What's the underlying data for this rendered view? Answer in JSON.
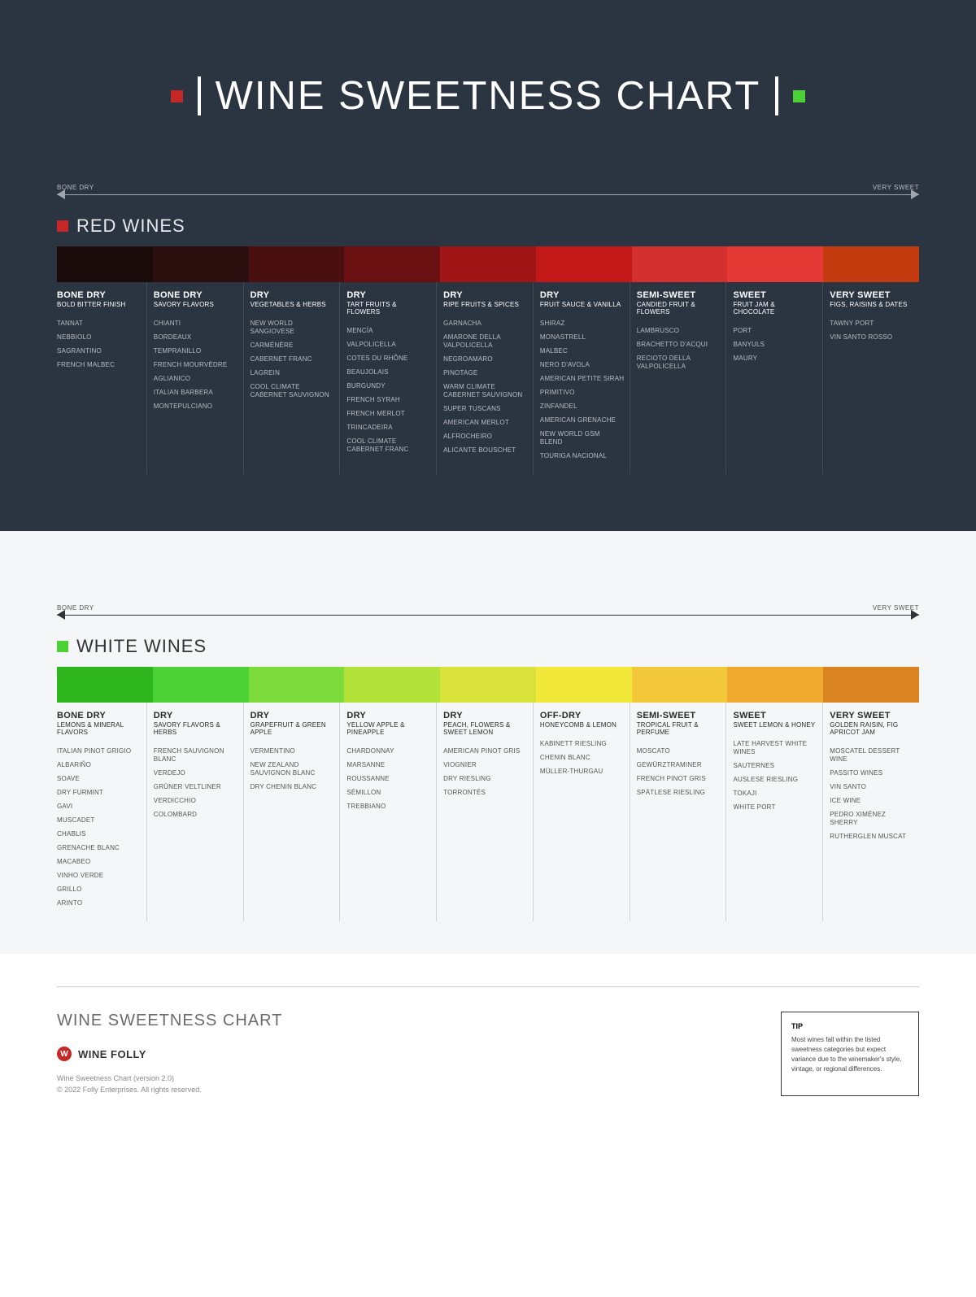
{
  "title": "WINE SWEETNESS CHART",
  "title_accent_left_color": "#c62828",
  "title_accent_right_color": "#4cd137",
  "scale": {
    "left_label": "BONE DRY",
    "right_label": "VERY SWEET"
  },
  "red": {
    "background_color": "#2b3441",
    "heading": "RED WINES",
    "accent_color": "#c62828",
    "arrow_color": "#a0a6ae",
    "swatches": [
      "#1a0a0a",
      "#2b0f0f",
      "#4a0f0f",
      "#6b1010",
      "#a01616",
      "#c21818",
      "#d32f2f",
      "#e53935",
      "#c43b10"
    ],
    "categories": [
      {
        "title": "BONE DRY",
        "subtitle": "BOLD BITTER FINISH",
        "wines": [
          "TANNAT",
          "NEBBIOLO",
          "SAGRANTINO",
          "FRENCH MALBEC"
        ]
      },
      {
        "title": "BONE DRY",
        "subtitle": "SAVORY FLAVORS",
        "wines": [
          "CHIANTI",
          "BORDEAUX",
          "TEMPRANILLO",
          "FRENCH MOURVÈDRE",
          "AGLIANICO",
          "ITALIAN BARBERA",
          "MONTEPULCIANO"
        ]
      },
      {
        "title": "DRY",
        "subtitle": "VEGETABLES & HERBS",
        "wines": [
          "NEW WORLD SANGIOVESE",
          "CARMÉNÈRE",
          "CABERNET FRANC",
          "LAGREIN",
          "COOL CLIMATE CABERNET SAUVIGNON"
        ]
      },
      {
        "title": "DRY",
        "subtitle": "TART FRUITS & FLOWERS",
        "wines": [
          "MENCÍA",
          "VALPOLICELLA",
          "COTES DU RHÔNE",
          "BEAUJOLAIS",
          "BURGUNDY",
          "FRENCH SYRAH",
          "FRENCH MERLOT",
          "TRINCADEIRA",
          "COOL CLIMATE CABERNET FRANC"
        ]
      },
      {
        "title": "DRY",
        "subtitle": "RIPE FRUITS & SPICES",
        "wines": [
          "GARNACHA",
          "AMARONE DELLA VALPOLICELLA",
          "NEGROAMARO",
          "PINOTAGE",
          "WARM CLIMATE CABERNET SAUVIGNON",
          "SUPER TUSCANS",
          "AMERICAN MERLOT",
          "ALFROCHEIRO",
          "ALICANTE BOUSCHET"
        ]
      },
      {
        "title": "DRY",
        "subtitle": "FRUIT SAUCE & VANILLA",
        "wines": [
          "SHIRAZ",
          "MONASTRELL",
          "MALBEC",
          "NERO D'AVOLA",
          "AMERICAN PETITE SIRAH",
          "PRIMITIVO",
          "ZINFANDEL",
          "AMERICAN GRENACHE",
          "NEW WORLD GSM BLEND",
          "TOURIGA NACIONAL"
        ]
      },
      {
        "title": "SEMI-SWEET",
        "subtitle": "CANDIED FRUIT & FLOWERS",
        "wines": [
          "LAMBRUSCO",
          "BRACHETTO D'ACQUI",
          "RECIOTO DELLA VALPOLICELLA"
        ]
      },
      {
        "title": "SWEET",
        "subtitle": "FRUIT JAM & CHOCOLATE",
        "wines": [
          "PORT",
          "BANYULS",
          "MAURY"
        ]
      },
      {
        "title": "VERY SWEET",
        "subtitle": "FIGS, RAISINS & DATES",
        "wines": [
          "TAWNY PORT",
          "VIN SANTO ROSSO"
        ]
      }
    ]
  },
  "white": {
    "background_color": "#f4f6f7",
    "heading": "WHITE WINES",
    "accent_color": "#4cd137",
    "arrow_color": "#333333",
    "swatches": [
      "#2fb61f",
      "#4cd137",
      "#7edb3c",
      "#b2e23a",
      "#d8e23a",
      "#f2e83a",
      "#f2c83a",
      "#f0a82e",
      "#d98420"
    ],
    "categories": [
      {
        "title": "BONE DRY",
        "subtitle": "LEMONS & MINERAL FLAVORS",
        "wines": [
          "ITALIAN PINOT GRIGIO",
          "ALBARIÑO",
          "SOAVE",
          "DRY FURMINT",
          "GAVI",
          "MUSCADET",
          "CHABLIS",
          "GRENACHE BLANC",
          "MACABEO",
          "VINHO VERDE",
          "GRILLO",
          "ARINTO"
        ]
      },
      {
        "title": "DRY",
        "subtitle": "SAVORY FLAVORS & HERBS",
        "wines": [
          "FRENCH SAUVIGNON BLANC",
          "VERDEJO",
          "GRÜNER VELTLINER",
          "VERDICCHIO",
          "COLOMBARD"
        ]
      },
      {
        "title": "DRY",
        "subtitle": "GRAPEFRUIT & GREEN APPLE",
        "wines": [
          "VERMENTINO",
          "NEW ZEALAND SAUVIGNON BLANC",
          "DRY CHENIN BLANC"
        ]
      },
      {
        "title": "DRY",
        "subtitle": "YELLOW APPLE & PINEAPPLE",
        "wines": [
          "CHARDONNAY",
          "MARSANNE",
          "ROUSSANNE",
          "SÉMILLON",
          "TREBBIANO"
        ]
      },
      {
        "title": "DRY",
        "subtitle": "PEACH, FLOWERS & SWEET LEMON",
        "wines": [
          "AMERICAN PINOT GRIS",
          "VIOGNIER",
          "DRY RIESLING",
          "TORRONTÉS"
        ]
      },
      {
        "title": "OFF-DRY",
        "subtitle": "HONEYCOMB & LEMON",
        "wines": [
          "KABINETT RIESLING",
          "CHENIN BLANC",
          "MÜLLER-THURGAU"
        ]
      },
      {
        "title": "SEMI-SWEET",
        "subtitle": "TROPICAL FRUIT & PERFUME",
        "wines": [
          "MOSCATO",
          "GEWÜRZTRAMINER",
          "FRENCH PINOT GRIS",
          "SPÄTLESE RIESLING"
        ]
      },
      {
        "title": "SWEET",
        "subtitle": "SWEET LEMON & HONEY",
        "wines": [
          "LATE HARVEST WHITE WINES",
          "SAUTERNES",
          "AUSLESE RIESLING",
          "TOKAJI",
          "WHITE PORT"
        ]
      },
      {
        "title": "VERY SWEET",
        "subtitle": "GOLDEN RAISIN, FIG APRICOT JAM",
        "wines": [
          "MOSCATEL DESSERT WINE",
          "PASSITO WINES",
          "VIN SANTO",
          "ICE WINE",
          "PEDRO XIMÉNEZ SHERRY",
          "RUTHERGLEN MUSCAT"
        ]
      }
    ]
  },
  "footer": {
    "title": "WINE SWEETNESS CHART",
    "brand": "WINE FOLLY",
    "brand_icon_color": "#c62828",
    "version": "Wine Sweetness Chart (version 2.0)",
    "copyright": "© 2022 Folly Enterprises. All rights reserved.",
    "tip_title": "TIP",
    "tip_text": "Most wines fall within the listed sweetness categories but expect variance due to the winemaker's style, vintage, or regional differences."
  }
}
